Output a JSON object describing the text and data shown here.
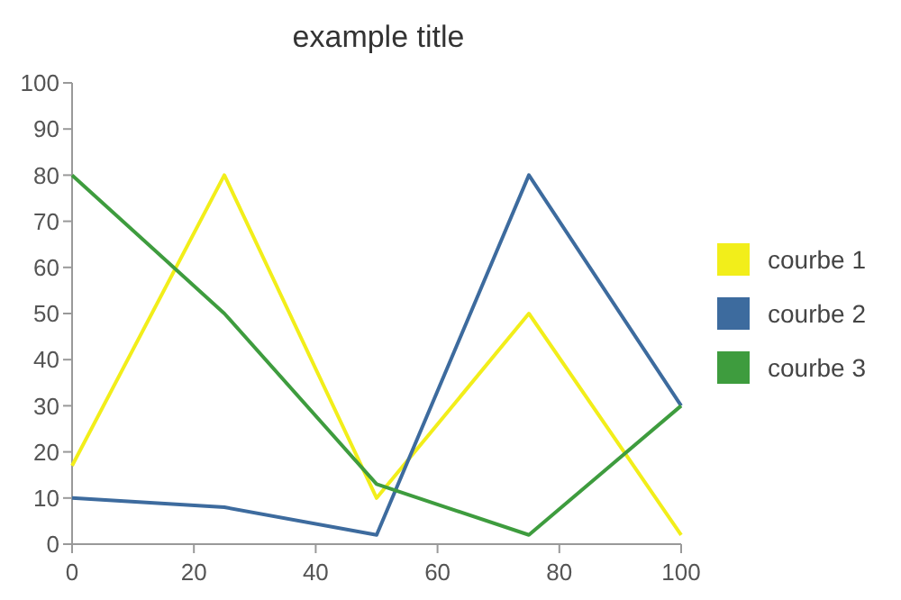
{
  "chart_data": {
    "type": "line",
    "title": "example title",
    "x": [
      0,
      25,
      50,
      75,
      100
    ],
    "xlim": [
      0,
      100
    ],
    "xticks": [
      0,
      20,
      40,
      60,
      80,
      100
    ],
    "ylim": [
      0,
      100
    ],
    "yticks": [
      0,
      10,
      20,
      30,
      40,
      50,
      60,
      70,
      80,
      90,
      100
    ],
    "legend": "right",
    "marker": "none",
    "line_style": "solid",
    "series": [
      {
        "name": "courbe 1",
        "color": "#f2ee1a",
        "values": [
          17,
          80,
          10,
          50,
          2
        ]
      },
      {
        "name": "courbe 2",
        "color": "#3d6b9e",
        "values": [
          10,
          8,
          2,
          80,
          30
        ]
      },
      {
        "name": "courbe 3",
        "color": "#3e9c3e",
        "values": [
          80,
          50,
          13,
          2,
          30
        ]
      }
    ]
  }
}
